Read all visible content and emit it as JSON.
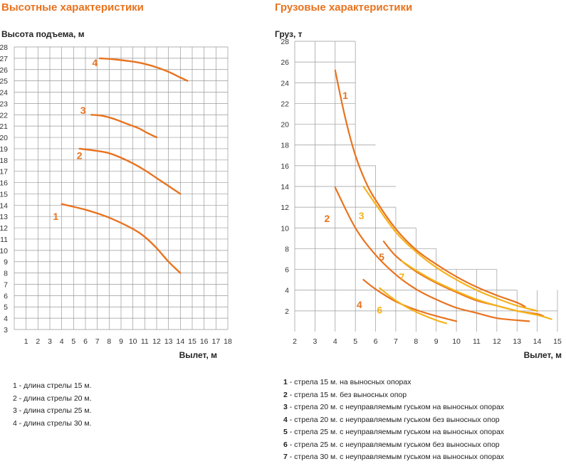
{
  "colors": {
    "orange": "#e8731f",
    "yellow": "#f5b21b",
    "grid": "#999999",
    "text": "#222222"
  },
  "chart_data": [
    {
      "type": "line",
      "title": "Высотные характеристики",
      "ylabel": "Высота подъема, м",
      "xlabel": "Вылет, м",
      "xlim": [
        0,
        18
      ],
      "ylim": [
        3,
        28
      ],
      "xticks": [
        1,
        2,
        3,
        4,
        5,
        6,
        7,
        8,
        9,
        10,
        11,
        12,
        13,
        14,
        15,
        16,
        17,
        18
      ],
      "yticks": [
        3,
        4,
        5,
        6,
        7,
        8,
        9,
        10,
        11,
        12,
        13,
        14,
        15,
        16,
        17,
        18,
        19,
        20,
        21,
        22,
        23,
        24,
        25,
        26,
        27,
        28
      ],
      "grid": true,
      "series": [
        {
          "name": "1",
          "color": "#e8731f",
          "label_at": [
            3.5,
            13
          ],
          "points": [
            [
              4,
              14.1
            ],
            [
              6,
              13.6
            ],
            [
              8,
              12.9
            ],
            [
              10,
              11.9
            ],
            [
              11,
              11.2
            ],
            [
              12,
              10.2
            ],
            [
              13,
              9.0
            ],
            [
              14,
              8.0
            ]
          ]
        },
        {
          "name": "2",
          "color": "#e8731f",
          "label_at": [
            5.5,
            18.4
          ],
          "points": [
            [
              5.5,
              19.0
            ],
            [
              7,
              18.8
            ],
            [
              8,
              18.6
            ],
            [
              9,
              18.2
            ],
            [
              10,
              17.7
            ],
            [
              11,
              17.1
            ],
            [
              12,
              16.4
            ],
            [
              13,
              15.7
            ],
            [
              14,
              15.0
            ]
          ]
        },
        {
          "name": "3",
          "color": "#e8731f",
          "label_at": [
            5.8,
            22.4
          ],
          "points": [
            [
              6.5,
              22.0
            ],
            [
              7.5,
              21.9
            ],
            [
              8.5,
              21.6
            ],
            [
              9.5,
              21.2
            ],
            [
              10.5,
              20.8
            ],
            [
              11.2,
              20.4
            ],
            [
              12,
              20.0
            ]
          ]
        },
        {
          "name": "4",
          "color": "#e8731f",
          "label_at": [
            6.8,
            26.6
          ],
          "points": [
            [
              7.2,
              27.0
            ],
            [
              8.5,
              26.9
            ],
            [
              10,
              26.7
            ],
            [
              11,
              26.5
            ],
            [
              12,
              26.2
            ],
            [
              13,
              25.8
            ],
            [
              14,
              25.3
            ],
            [
              14.6,
              25.0
            ]
          ]
        }
      ]
    },
    {
      "type": "line",
      "title": "Грузовые характеристики",
      "ylabel": "Груз, т",
      "xlabel": "Вылет, м",
      "xlim": [
        2,
        15
      ],
      "ylim": [
        0,
        28
      ],
      "xticks": [
        2,
        3,
        4,
        5,
        6,
        7,
        8,
        9,
        10,
        11,
        12,
        13,
        14,
        15
      ],
      "yticks": [
        2,
        4,
        6,
        8,
        10,
        12,
        14,
        16,
        18,
        20,
        22,
        24,
        26,
        28
      ],
      "grid": "staircase",
      "series": [
        {
          "name": "1",
          "color": "#e8731f",
          "label_at": [
            4.5,
            22.8
          ],
          "points": [
            [
              4,
              25.2
            ],
            [
              4.5,
              20.6
            ],
            [
              5,
              17.0
            ],
            [
              5.5,
              14.5
            ],
            [
              6,
              12.7
            ],
            [
              7,
              9.9
            ],
            [
              8,
              7.9
            ],
            [
              9,
              6.5
            ],
            [
              10,
              5.3
            ],
            [
              11,
              4.3
            ],
            [
              12,
              3.5
            ],
            [
              13,
              2.8
            ],
            [
              13.4,
              2.4
            ]
          ]
        },
        {
          "name": "2",
          "color": "#e8731f",
          "label_at": [
            3.6,
            10.9
          ],
          "points": [
            [
              4,
              13.9
            ],
            [
              5,
              10.0
            ],
            [
              6,
              7.4
            ],
            [
              7,
              5.5
            ],
            [
              8,
              4.1
            ],
            [
              9,
              3.1
            ],
            [
              10,
              2.3
            ],
            [
              11,
              1.8
            ],
            [
              12,
              1.3
            ],
            [
              13,
              1.1
            ],
            [
              13.6,
              1.0
            ]
          ]
        },
        {
          "name": "3",
          "color": "#f5b21b",
          "label_at": [
            5.3,
            11.2
          ],
          "points": [
            [
              5.4,
              14.0
            ],
            [
              6,
              12.3
            ],
            [
              7,
              9.6
            ],
            [
              8,
              7.7
            ],
            [
              9,
              6.2
            ],
            [
              10,
              5.0
            ],
            [
              11,
              4.0
            ],
            [
              12,
              3.2
            ],
            [
              13,
              2.5
            ],
            [
              14,
              2.0
            ]
          ]
        },
        {
          "name": "4",
          "color": "#e8731f",
          "label_at": [
            5.2,
            2.6
          ],
          "points": [
            [
              5.4,
              5.0
            ],
            [
              6,
              4.1
            ],
            [
              7,
              2.9
            ],
            [
              8,
              2.1
            ],
            [
              9,
              1.5
            ],
            [
              10,
              1.0
            ]
          ]
        },
        {
          "name": "5",
          "color": "#e8731f",
          "label_at": [
            6.3,
            7.2
          ],
          "points": [
            [
              6.4,
              8.7
            ],
            [
              7,
              7.3
            ],
            [
              8,
              5.8
            ],
            [
              9,
              4.7
            ],
            [
              10,
              3.8
            ],
            [
              11,
              3.0
            ],
            [
              12,
              2.5
            ],
            [
              13,
              2.0
            ],
            [
              14,
              1.7
            ],
            [
              14.3,
              1.5
            ]
          ]
        },
        {
          "name": "6",
          "color": "#f5b21b",
          "label_at": [
            6.2,
            2.1
          ],
          "points": [
            [
              6.2,
              4.2
            ],
            [
              7,
              3.0
            ],
            [
              8,
              1.9
            ],
            [
              9,
              1.1
            ],
            [
              9.5,
              0.8
            ]
          ]
        },
        {
          "name": "7",
          "color": "#f5b21b",
          "label_at": [
            7.3,
            5.3
          ],
          "points": [
            [
              7.3,
              6.8
            ],
            [
              8,
              5.9
            ],
            [
              9,
              4.8
            ],
            [
              10,
              3.9
            ],
            [
              11,
              3.1
            ],
            [
              12,
              2.5
            ],
            [
              13,
              2.0
            ],
            [
              14,
              1.6
            ],
            [
              14.7,
              1.2
            ]
          ]
        }
      ]
    }
  ],
  "legend_left": [
    {
      "key": "1",
      "text": " - длина стрелы 15 м."
    },
    {
      "key": "2",
      "text": " - длина стрелы 20 м."
    },
    {
      "key": "3",
      "text": " - длина стрелы 25 м."
    },
    {
      "key": "4",
      "text": " - длина стрелы 30 м."
    }
  ],
  "legend_right": [
    {
      "key": "1",
      "text": " - стрела 15 м. на выносных опорах"
    },
    {
      "key": "2",
      "text": " - стрела 15 м. без выносных опор"
    },
    {
      "key": "3",
      "text": " - стрела 20 м. с неуправляемым гуськом на выносных опорах"
    },
    {
      "key": "4",
      "text": " - стрела 20 м. с неуправляемым гуськом без выносных опор"
    },
    {
      "key": "5",
      "text": " - стрела 25 м. с неуправляемым гуськом на выносных опорах"
    },
    {
      "key": "6",
      "text": " - стрела 25 м. с неуправляемым гуськом без выносных опор"
    },
    {
      "key": "7",
      "text": " - стрела 30 м. с неуправляемым гуськом на выносных опорах"
    }
  ]
}
